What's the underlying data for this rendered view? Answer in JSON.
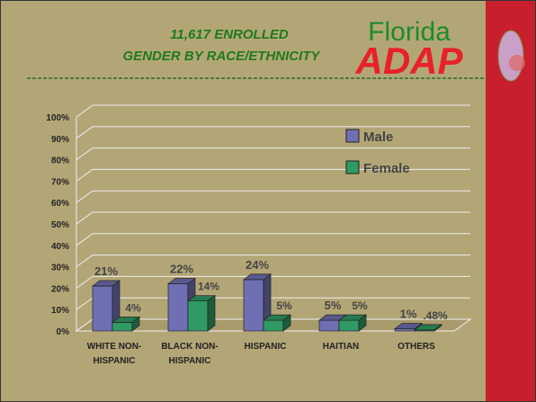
{
  "chart_data": {
    "type": "bar",
    "title": "11,617 ENROLLED",
    "subtitle": "GENDER BY RACE/ETHNICITY",
    "logo_top": "Florida",
    "logo_bottom": "ADAP",
    "categories": [
      "WHITE NON-HISPANIC",
      "BLACK NON-HISPANIC",
      "HISPANIC",
      "HAITIAN",
      "OTHERS"
    ],
    "series": [
      {
        "name": "Male",
        "color": "#6f6fb3",
        "values": [
          21,
          22,
          24,
          5,
          1
        ],
        "value_labels": [
          "21%",
          "22%",
          "24%",
          "5%",
          "1%"
        ]
      },
      {
        "name": "Female",
        "color": "#2f9a64",
        "values": [
          4,
          14,
          5,
          5,
          0.48
        ],
        "value_labels": [
          "4%",
          "14%",
          "5%",
          "5%",
          ".48%"
        ]
      }
    ],
    "ylim": [
      0,
      100
    ],
    "yticks": [
      {
        "value": 0,
        "label": "0%"
      },
      {
        "value": 10,
        "label": "10%"
      },
      {
        "value": 20,
        "label": "20%"
      },
      {
        "value": 30,
        "label": "30%"
      },
      {
        "value": 40,
        "label": "40%"
      },
      {
        "value": 50,
        "label": "50%"
      },
      {
        "value": 60,
        "label": "60%"
      },
      {
        "value": 70,
        "label": "70%"
      },
      {
        "value": 80,
        "label": "80%"
      },
      {
        "value": 90,
        "label": "90%"
      },
      {
        "value": 100,
        "label": "100%"
      }
    ],
    "grid": true
  }
}
